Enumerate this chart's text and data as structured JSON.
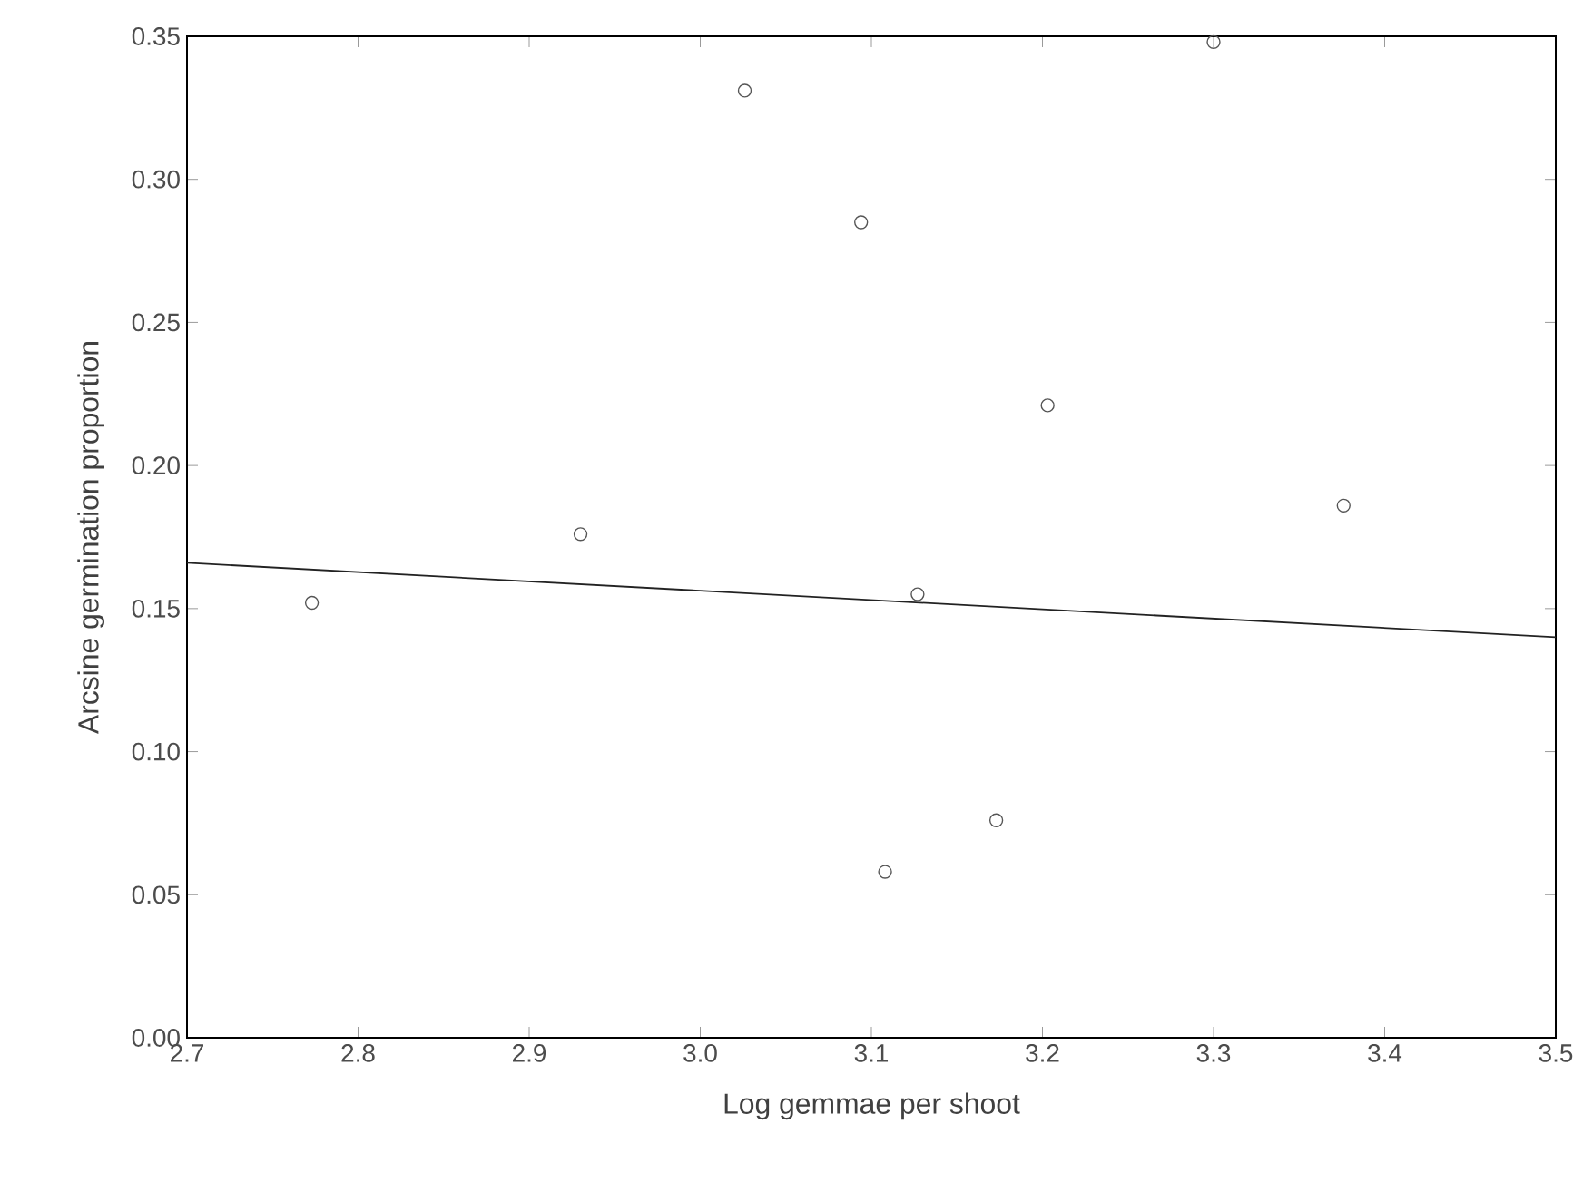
{
  "chart_data": {
    "type": "scatter",
    "xlabel": "Log gemmae per shoot",
    "ylabel": "Arcsine germination proportion",
    "xlim": [
      2.7,
      3.5
    ],
    "ylim": [
      0,
      0.35
    ],
    "xticks": [
      2.7,
      2.8,
      2.9,
      {
        "value": 3,
        "label": "3.0"
      },
      3.1,
      3.2,
      3.3,
      3.4,
      3.5
    ],
    "yticks": [
      {
        "value": 0,
        "label": "0.00"
      },
      {
        "value": 0.05,
        "label": "0.05"
      },
      {
        "value": 0.1,
        "label": "0.10"
      },
      {
        "value": 0.15,
        "label": "0.15"
      },
      {
        "value": 0.2,
        "label": "0.20"
      },
      {
        "value": 0.25,
        "label": "0.25"
      },
      {
        "value": 0.3,
        "label": "0.30"
      },
      {
        "value": 0.35,
        "label": "0.35"
      }
    ],
    "grid": false,
    "series": [
      {
        "marker": "circle",
        "color": "#555555",
        "x": [
          2.773,
          2.93,
          3.026,
          3.094,
          3.108,
          3.127,
          3.173,
          3.203,
          3.3,
          3.376
        ],
        "values": [
          0.152,
          0.176,
          0.331,
          0.285,
          0.058,
          0.155,
          0.076,
          0.221,
          0.348,
          0.186
        ]
      },
      {
        "type": "line",
        "color": "#222222",
        "x": [
          2.7,
          3.5
        ],
        "values": [
          0.166,
          0.14
        ]
      }
    ]
  }
}
